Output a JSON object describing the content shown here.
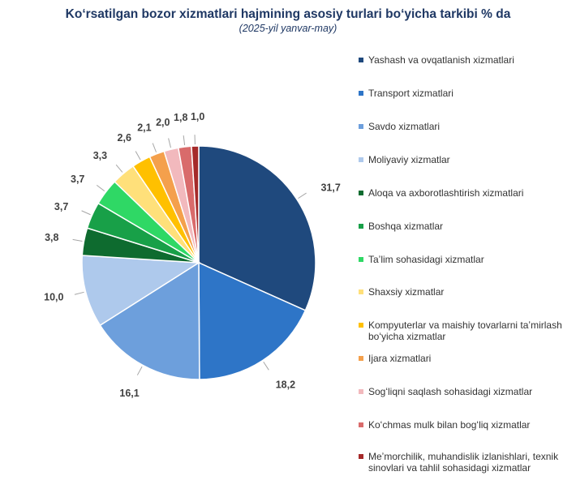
{
  "chart_data": {
    "type": "pie",
    "title": "Koʻrsatilgan bozor xizmatlari hajmining asosiy turlari boʻyicha tarkibi % da",
    "subtitle": "(2025-yil yanvar-may)",
    "legend_position": "right",
    "slices": [
      {
        "name": "Yashash va ovqatlanish xizmatlari",
        "value": 31.7,
        "label": "31,7",
        "color": "#1f497d"
      },
      {
        "name": "Transport xizmatlari",
        "value": 18.2,
        "label": "18,2",
        "color": "#2e75c7"
      },
      {
        "name": "Savdo xizmatlari",
        "value": 16.1,
        "label": "16,1",
        "color": "#6d9fdc"
      },
      {
        "name": "Moliyaviy xizmatlar",
        "value": 10.0,
        "label": "10,0",
        "color": "#aec9ec"
      },
      {
        "name": "Aloqa va axborotlashtirish xizmatlari",
        "value": 3.8,
        "label": "3,8",
        "color": "#0e6b2f"
      },
      {
        "name": "Boshqa xizmatlar",
        "value": 3.7,
        "label": "3,7",
        "color": "#18a048"
      },
      {
        "name": "Taʼlim sohasidagi xizmatlar",
        "value": 3.7,
        "label": "3,7",
        "color": "#2fd865"
      },
      {
        "name": "Shaxsiy xizmatlar",
        "value": 3.3,
        "label": "3,3",
        "color": "#ffe07a"
      },
      {
        "name": "Kompyuterlar va maishiy tovarlarni taʼmirlash boʻyicha xizmatlar",
        "value": 2.6,
        "label": "2,6",
        "color": "#ffc000"
      },
      {
        "name": "Ijara xizmatlari",
        "value": 2.1,
        "label": "2,1",
        "color": "#f4a04c"
      },
      {
        "name": "Sogʻliqni saqlash sohasidagi xizmatlar",
        "value": 2.0,
        "label": "2,0",
        "color": "#f2b9bd"
      },
      {
        "name": "Koʻchmas mulk bilan bogʻliq xizmatlar",
        "value": 1.8,
        "label": "1,8",
        "color": "#d96b6b"
      },
      {
        "name": "Meʼmorchilik, muhandislik izlanishlari, texnik sinovlari va tahlil sohasidagi xizmatlar",
        "value": 1.0,
        "label": "1,0",
        "color": "#a52a2a"
      }
    ]
  }
}
